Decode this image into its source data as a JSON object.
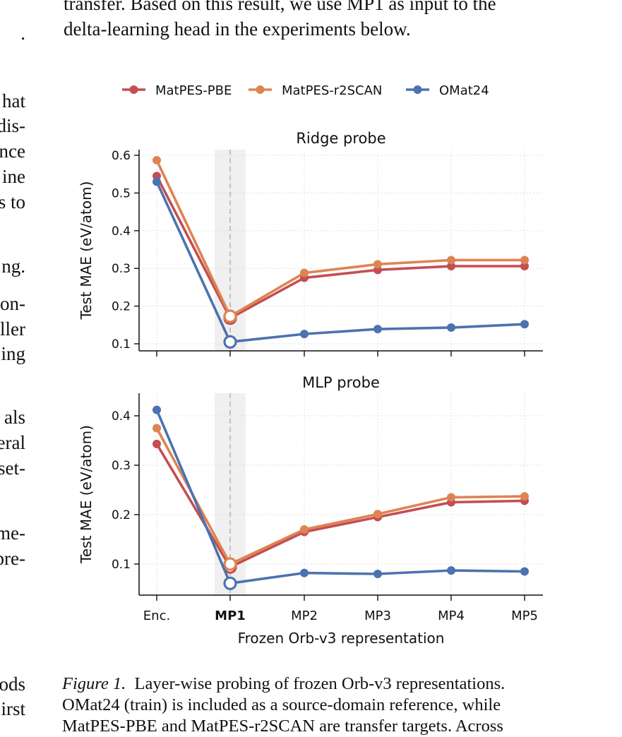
{
  "page": {
    "top_text": [
      "transfer. Based on this result, we use MP1 as input to the",
      "delta-learning head in the experiments below."
    ],
    "left_fragments": [
      ".",
      "hat",
      "dis-",
      "nce",
      "ine",
      "s to",
      "ng.",
      "on-",
      "ller",
      "ing",
      "als",
      "eral",
      "set-",
      "me-",
      "pre-",
      "ods",
      "irst"
    ],
    "caption": {
      "label": "Figure 1.",
      "lines": [
        "Layer-wise probing of frozen Orb-v3 representations.",
        "OMat24 (train) is included as a source-domain reference, while",
        "MatPES-PBE and MatPES-r2SCAN are transfer targets. Across"
      ]
    }
  },
  "chart_data": {
    "type": "line",
    "legend": {
      "placement": "top-center",
      "entries": [
        "MatPES-PBE",
        "MatPES-r2SCAN",
        "OMat24"
      ]
    },
    "categories": [
      "Enc.",
      "MP1",
      "MP2",
      "MP3",
      "MP4",
      "MP5"
    ],
    "highlight_category": "MP1",
    "xlabel": "Frozen Orb-v3 representation",
    "colors": {
      "MatPES-PBE": "#c44e52",
      "MatPES-r2SCAN": "#dd8452",
      "OMat24": "#4c72b0"
    },
    "grid": "dotted",
    "panels": [
      {
        "title": "Ridge probe",
        "ylabel": "Test MAE (eV/atom)",
        "ylim": [
          0.08,
          0.62
        ],
        "yticks": [
          "0.1",
          "0.2",
          "0.3",
          "0.4",
          "0.5",
          "0.6"
        ],
        "series": [
          {
            "name": "MatPES-PBE",
            "values": [
              0.545,
              0.168,
              0.275,
              0.296,
              0.306,
              0.306
            ]
          },
          {
            "name": "MatPES-r2SCAN",
            "values": [
              0.587,
              0.173,
              0.288,
              0.311,
              0.322,
              0.322
            ]
          },
          {
            "name": "OMat24",
            "values": [
              0.53,
              0.105,
              0.126,
              0.139,
              0.143,
              0.152
            ]
          }
        ]
      },
      {
        "title": "MLP probe",
        "ylabel": "Test MAE (eV/atom)",
        "ylim": [
          0.04,
          0.45
        ],
        "yticks": [
          "0.1",
          "0.2",
          "0.3",
          "0.4"
        ],
        "series": [
          {
            "name": "MatPES-PBE",
            "values": [
              0.343,
              0.094,
              0.165,
              0.195,
              0.225,
              0.228
            ]
          },
          {
            "name": "MatPES-r2SCAN",
            "values": [
              0.375,
              0.1,
              0.17,
              0.201,
              0.235,
              0.237
            ]
          },
          {
            "name": "OMat24",
            "values": [
              0.412,
              0.061,
              0.082,
              0.08,
              0.087,
              0.085
            ]
          }
        ]
      }
    ]
  }
}
